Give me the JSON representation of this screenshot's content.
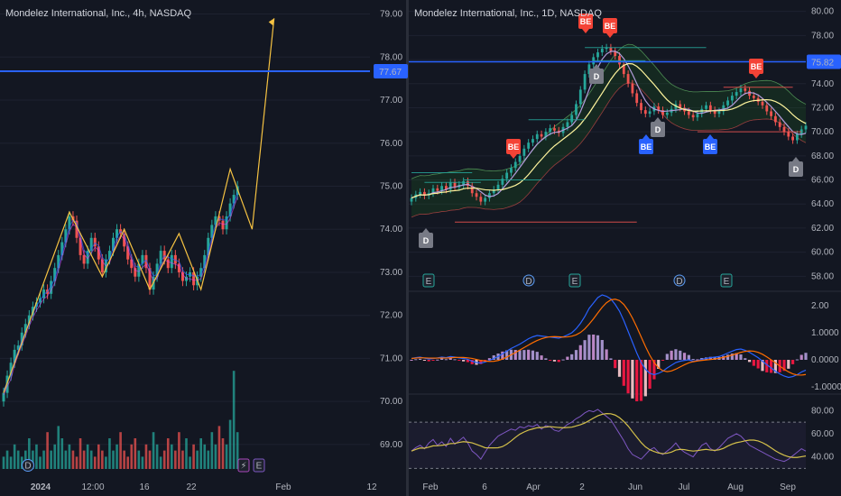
{
  "colors": {
    "background": "#131722",
    "grid": "#1e2230",
    "up": "#26a69a",
    "down": "#ef5350",
    "level_line": "#2962ff",
    "zigzag": "#f5c242",
    "macd_line": "#2962ff",
    "signal_line": "#ff6d00",
    "rsi_line": "#7e57c2",
    "rsi_ma": "#d4c04a",
    "bear_label": "#f44336",
    "bull_label": "#2962ff",
    "dividend_label": "#787b86"
  },
  "left_chart": {
    "title": "Mondelez International, Inc., 4h, NASDAQ",
    "price_ticks": [
      "79.00",
      "78.00",
      "77.00",
      "76.00",
      "75.00",
      "74.00",
      "73.00",
      "72.00",
      "71.00",
      "70.00",
      "69.00"
    ],
    "level_label": "77.67",
    "time_ticks": [
      "2024",
      "12:00",
      "16",
      "22",
      "Feb",
      "12"
    ],
    "markers": [
      {
        "type": "dividend",
        "text": "D",
        "icon": "dividend-icon"
      },
      {
        "type": "flash",
        "text": "⚡",
        "icon": "lightning-icon"
      },
      {
        "type": "earnings",
        "text": "E",
        "icon": "earnings-icon"
      }
    ]
  },
  "right_chart": {
    "title": "Mondelez International, Inc., 1D, NASDAQ",
    "price_ticks": [
      "80.00",
      "78.00",
      "76.00",
      "74.00",
      "72.00",
      "70.00",
      "68.00",
      "66.00",
      "64.00",
      "62.00",
      "60.00",
      "58.00"
    ],
    "level_label": "75.82",
    "time_ticks": [
      "Feb",
      "6",
      "Apr",
      "2",
      "Jun",
      "Jul",
      "Aug",
      "Sep"
    ],
    "macd_ticks": [
      "2.00",
      "1.0000",
      "0.0000",
      "-1.0000"
    ],
    "rsi_ticks": [
      "80.00",
      "60.00",
      "40.00"
    ],
    "labels": {
      "bear": "BE",
      "bull": "BE",
      "dividend": "D",
      "earnings": "E"
    }
  },
  "chart_data": [
    {
      "type": "candlestick",
      "title": "Mondelez International, Inc., 4h, NASDAQ",
      "ylim": [
        68.6,
        79.2
      ],
      "horizontal_level": 77.67,
      "closes": [
        70.2,
        70.6,
        70.9,
        71.2,
        71.3,
        71.6,
        71.8,
        72.0,
        72.2,
        72.3,
        72.4,
        72.6,
        72.5,
        72.8,
        73.1,
        73.4,
        73.7,
        74.0,
        74.3,
        74.2,
        73.8,
        73.4,
        73.2,
        73.5,
        73.8,
        73.6,
        73.3,
        73.0,
        73.3,
        73.5,
        73.8,
        74.0,
        73.9,
        73.6,
        73.3,
        73.1,
        72.9,
        73.2,
        73.4,
        73.1,
        72.6,
        72.9,
        73.2,
        73.5,
        73.3,
        73.1,
        73.4,
        73.2,
        73.0,
        72.8,
        72.9,
        73.0,
        72.7,
        72.9,
        73.1,
        73.4,
        73.8,
        74.1,
        74.3,
        74.2,
        74.0,
        74.3,
        74.6,
        74.8,
        75.0
      ],
      "volumes": [
        2,
        3,
        2,
        4,
        3,
        2,
        3,
        5,
        3,
        4,
        2,
        3,
        6,
        3,
        4,
        7,
        5,
        3,
        4,
        3,
        2,
        5,
        3,
        4,
        3,
        2,
        4,
        3,
        2,
        5,
        3,
        4,
        6,
        3,
        2,
        4,
        5,
        3,
        2,
        4,
        3,
        6,
        4,
        2,
        3,
        5,
        4,
        3,
        6,
        3,
        5,
        2,
        4,
        3,
        5,
        4,
        3,
        6,
        4,
        7,
        5,
        4,
        8,
        16,
        6
      ],
      "zigzag": [
        [
          0,
          70.2
        ],
        [
          18,
          74.4
        ],
        [
          27,
          72.9
        ],
        [
          33,
          74.0
        ],
        [
          40,
          72.6
        ],
        [
          48,
          73.9
        ],
        [
          54,
          72.6
        ],
        [
          62,
          75.4
        ],
        [
          68,
          74.0
        ],
        [
          74,
          78.9
        ]
      ]
    },
    {
      "type": "candlestick",
      "title": "Mondelez International, Inc., 1D, NASDAQ",
      "ylim": [
        57.5,
        80.5
      ],
      "horizontal_level": 75.82,
      "closes": [
        64.5,
        64.8,
        65.0,
        64.7,
        64.9,
        65.3,
        65.1,
        65.5,
        65.2,
        65.8,
        65.4,
        65.6,
        65.9,
        65.5,
        64.9,
        64.6,
        64.2,
        64.5,
        64.9,
        65.2,
        65.6,
        66.1,
        66.6,
        67.0,
        67.5,
        68.0,
        68.6,
        69.1,
        69.4,
        69.8,
        69.6,
        70.0,
        70.3,
        70.1,
        69.9,
        70.4,
        70.8,
        71.4,
        72.3,
        73.5,
        74.8,
        75.6,
        76.2,
        76.6,
        76.9,
        77.0,
        76.7,
        76.3,
        75.6,
        74.8,
        74.0,
        73.2,
        72.4,
        71.8,
        71.5,
        71.7,
        72.1,
        71.8,
        71.4,
        71.6,
        71.9,
        72.3,
        72.0,
        71.7,
        71.4,
        71.2,
        71.5,
        71.9,
        72.2,
        71.8,
        71.5,
        71.7,
        72.2,
        72.6,
        73.0,
        73.3,
        73.6,
        73.4,
        73.0,
        72.8,
        72.5,
        72.2,
        71.7,
        71.3,
        70.8,
        70.4,
        70.0,
        69.6,
        69.3,
        69.8,
        70.2,
        70.5
      ],
      "macd": [
        0.05,
        0.08,
        0.1,
        0.06,
        0.03,
        0.05,
        0.07,
        0.1,
        0.08,
        0.12,
        0.1,
        0.07,
        0.05,
        0.02,
        -0.05,
        -0.1,
        -0.12,
        -0.08,
        -0.02,
        0.05,
        0.12,
        0.22,
        0.32,
        0.42,
        0.5,
        0.58,
        0.68,
        0.78,
        0.85,
        0.9,
        0.88,
        0.86,
        0.84,
        0.82,
        0.8,
        0.85,
        0.92,
        1.0,
        1.15,
        1.35,
        1.6,
        1.9,
        2.1,
        2.3,
        2.4,
        2.35,
        2.25,
        2.05,
        1.8,
        1.45,
        1.05,
        0.65,
        0.25,
        -0.1,
        -0.35,
        -0.5,
        -0.55,
        -0.5,
        -0.42,
        -0.3,
        -0.2,
        -0.1,
        -0.05,
        -0.02,
        0.0,
        -0.05,
        -0.03,
        0.02,
        0.05,
        0.08,
        0.1,
        0.12,
        0.18,
        0.25,
        0.32,
        0.38,
        0.4,
        0.35,
        0.28,
        0.18,
        0.08,
        -0.05,
        -0.18,
        -0.3,
        -0.42,
        -0.52,
        -0.6,
        -0.65,
        -0.62,
        -0.55,
        -0.45,
        -0.38
      ],
      "rsi": [
        45,
        48,
        50,
        47,
        52,
        55,
        50,
        53,
        49,
        56,
        51,
        54,
        57,
        52,
        45,
        42,
        38,
        44,
        50,
        54,
        58,
        60,
        62,
        64,
        63,
        66,
        65,
        67,
        66,
        68,
        64,
        67,
        66,
        63,
        62,
        65,
        68,
        70,
        73,
        75,
        78,
        80,
        79,
        81,
        78,
        75,
        72,
        66,
        60,
        54,
        47,
        42,
        40,
        38,
        42,
        46,
        48,
        44,
        42,
        45,
        48,
        52,
        47,
        44,
        42,
        40,
        45,
        50,
        52,
        47,
        45,
        48,
        52,
        56,
        58,
        60,
        58,
        54,
        50,
        48,
        46,
        44,
        42,
        40,
        38,
        37,
        36,
        38,
        41,
        44,
        47,
        45
      ]
    }
  ]
}
